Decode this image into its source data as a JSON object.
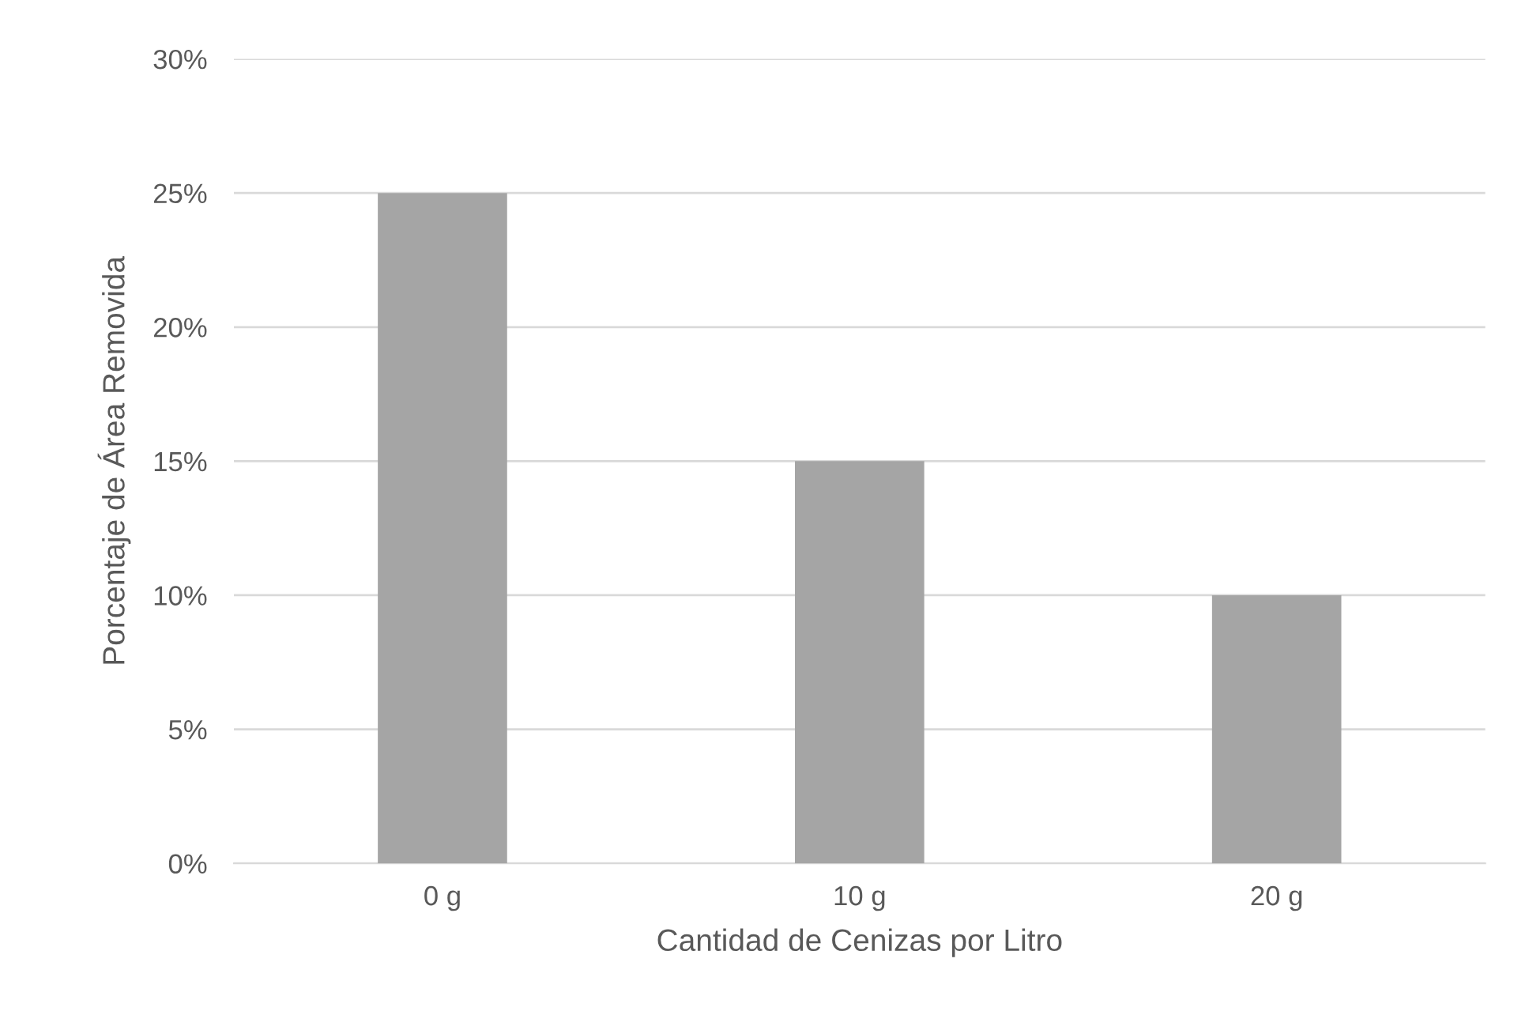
{
  "chart_data": {
    "type": "bar",
    "xlabel": "Cantidad de Cenizas por Litro",
    "ylabel": "Porcentaje de Área Removida",
    "categories": [
      "0 g",
      "10 g",
      "20 g"
    ],
    "values": [
      25,
      15,
      10
    ],
    "color": "#a5a5a5",
    "ylim": [
      0,
      30
    ],
    "yticks": [
      {
        "value": 0,
        "label": "0%"
      },
      {
        "value": 5,
        "label": "5%"
      },
      {
        "value": 10,
        "label": "10%"
      },
      {
        "value": 15,
        "label": "15%"
      },
      {
        "value": 20,
        "label": "20%"
      },
      {
        "value": 25,
        "label": "25%"
      },
      {
        "value": 30,
        "label": "30%"
      }
    ],
    "grid": "y",
    "legend": false
  }
}
